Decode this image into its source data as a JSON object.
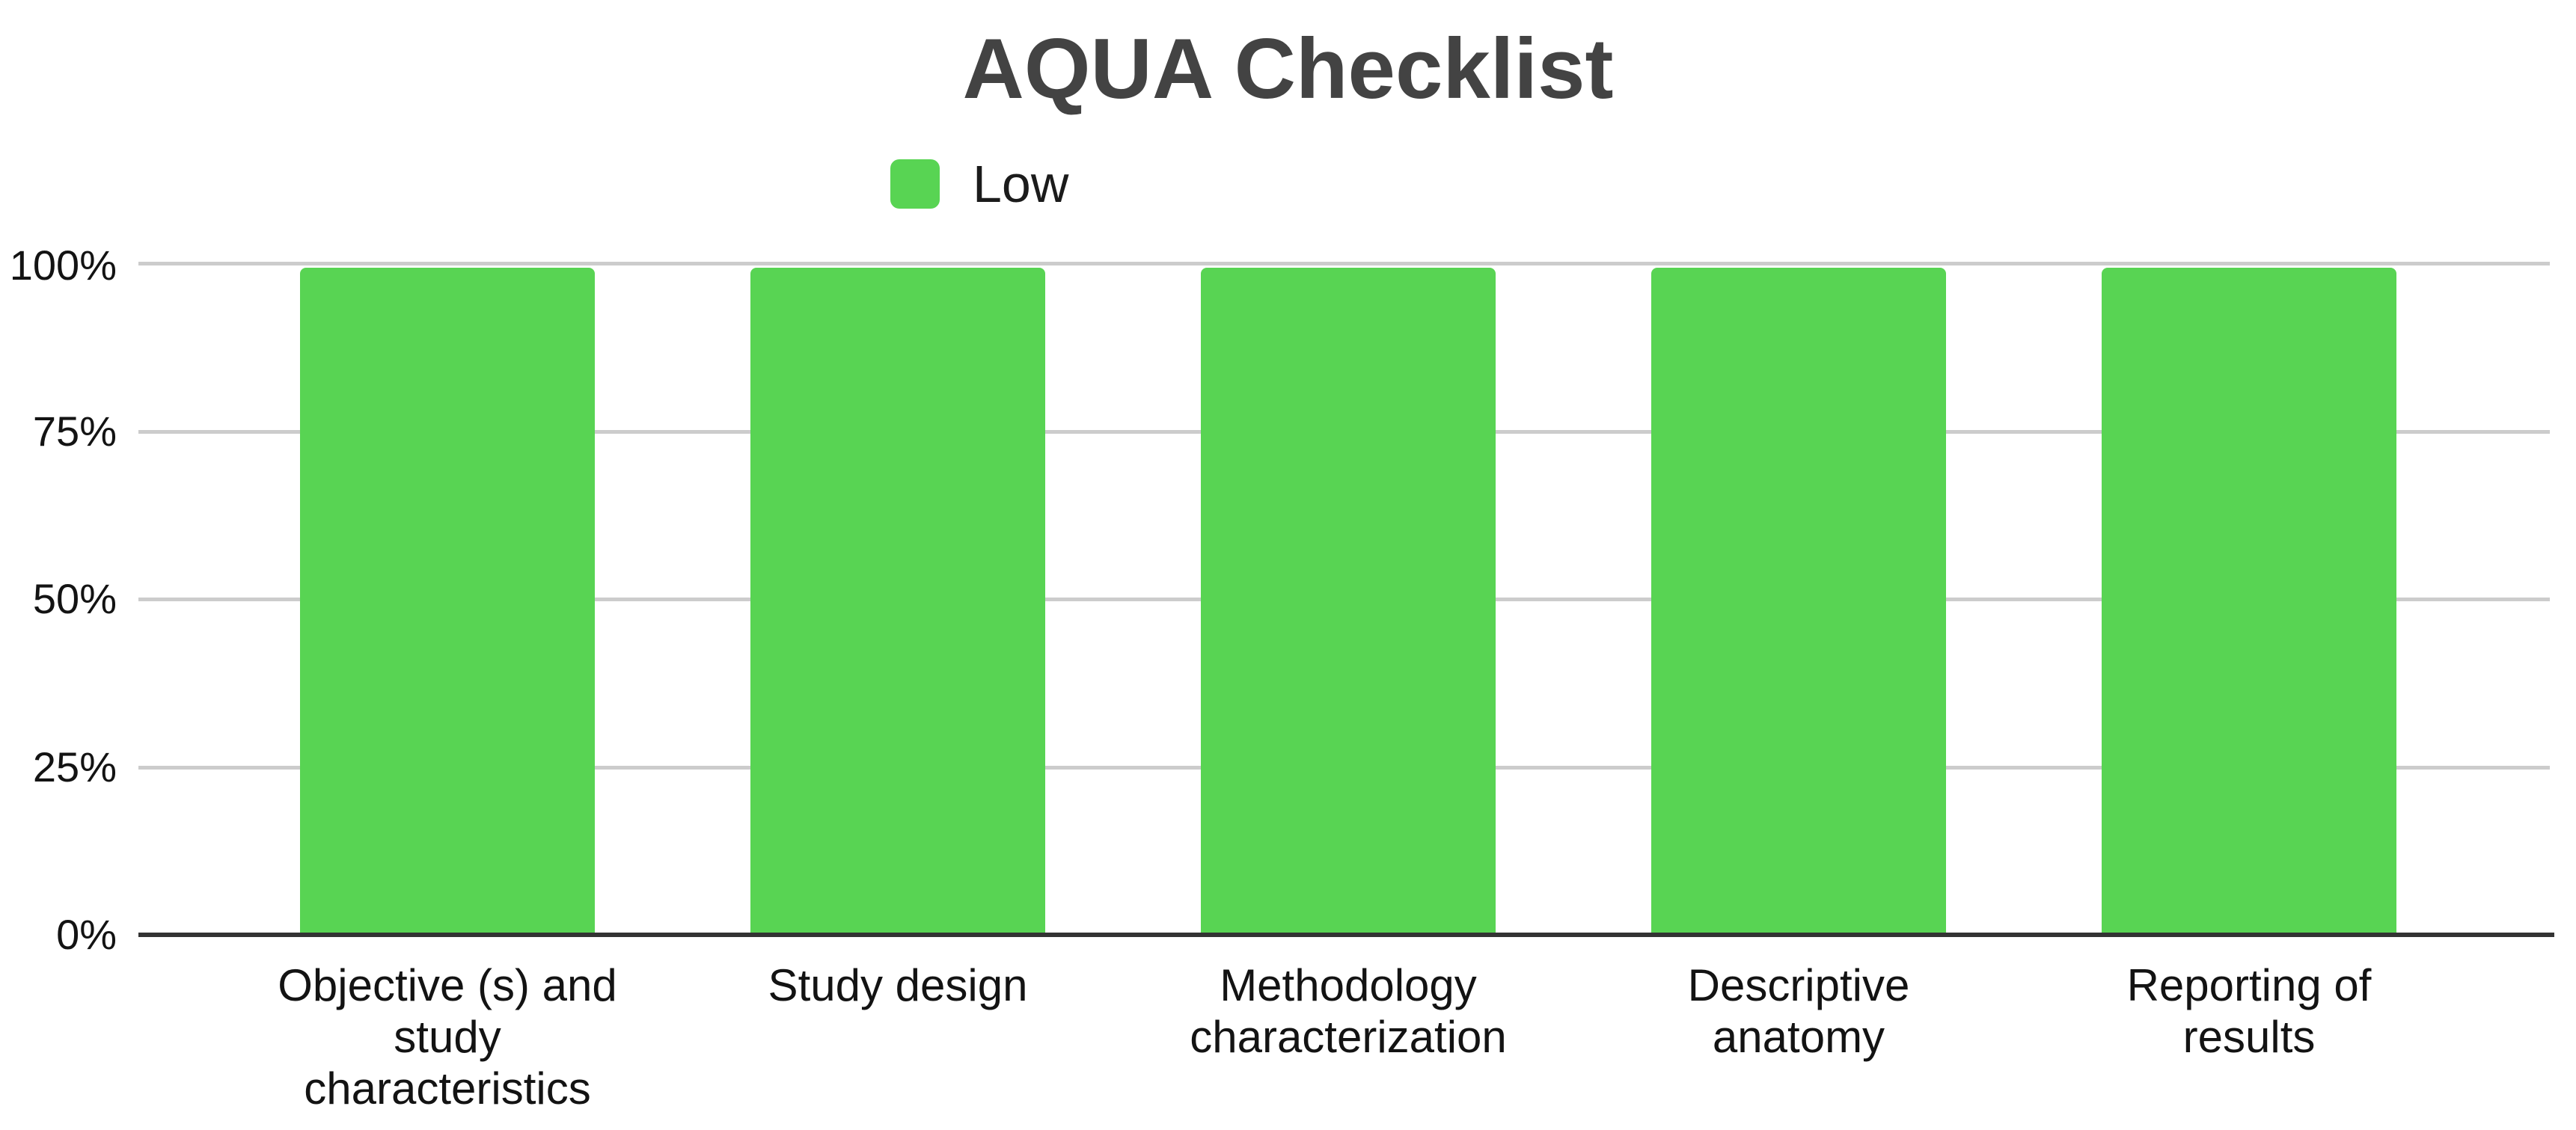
{
  "title": "AQUA Checklist",
  "legend": {
    "items": [
      {
        "label": "Low",
        "color": "#58D453"
      }
    ]
  },
  "y_axis": {
    "tick_labels": [
      "100%",
      "75%",
      "50%",
      "25%",
      "0%"
    ]
  },
  "chart_data": {
    "type": "bar",
    "title": "AQUA Checklist",
    "categories": [
      "Objective (s) and study characteristics",
      "Study design",
      "Methodology characterization",
      "Descriptive anatomy",
      "Reporting of results"
    ],
    "series": [
      {
        "name": "Low",
        "color": "#58D453",
        "values": [
          100,
          100,
          100,
          100,
          100
        ]
      }
    ],
    "unit": "%",
    "ylim": [
      0,
      100
    ],
    "y_ticks": [
      "0%",
      "25%",
      "50%",
      "75%",
      "100%"
    ],
    "grid": true,
    "legend_position": "top"
  }
}
